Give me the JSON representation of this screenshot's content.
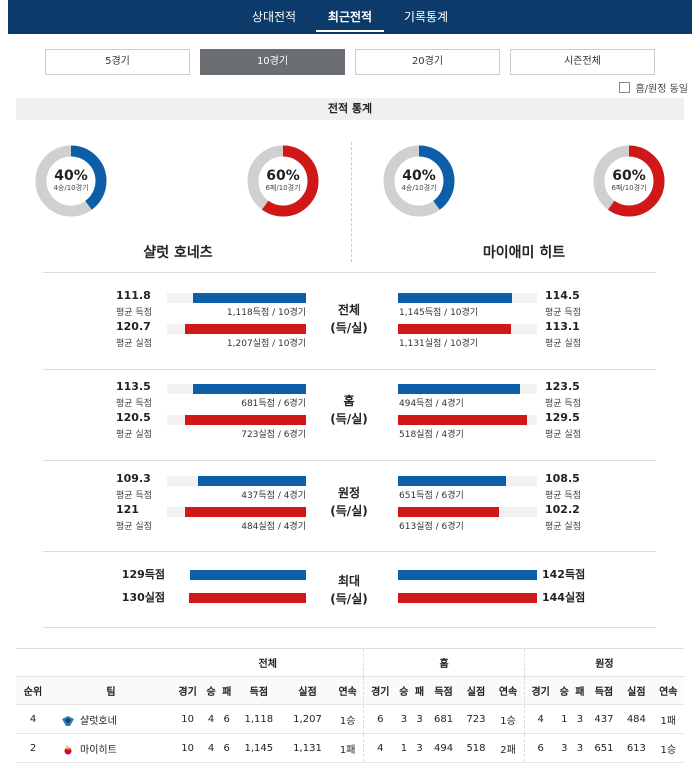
{
  "nav": {
    "tabs": [
      {
        "label": "상대전적"
      },
      {
        "label": "최근전적"
      },
      {
        "label": "기록통계"
      }
    ],
    "active_index": 1
  },
  "filters": {
    "buttons": [
      {
        "label": "5경기"
      },
      {
        "label": "10경기"
      },
      {
        "label": "20경기"
      },
      {
        "label": "시즌전체"
      }
    ],
    "active_index": 1
  },
  "home_away_toggle": {
    "label": "홈/원정 동일",
    "checked": false
  },
  "section_title": "전적 통계",
  "colors": {
    "blue": "#0d5ea8",
    "red": "#d01818",
    "grey": "#d0d0d0",
    "nav": "#0c3a6b"
  },
  "teams": [
    {
      "name": "샬럿 호네츠",
      "win": {
        "percent": 40,
        "pct_label": "40%",
        "sub": "4승/10경기"
      },
      "loss": {
        "percent": 60,
        "pct_label": "60%",
        "sub": "6패/10경기"
      }
    },
    {
      "name": "마이애미 히트",
      "win": {
        "percent": 40,
        "pct_label": "40%",
        "sub": "4승/10경기"
      },
      "loss": {
        "percent": 60,
        "pct_label": "60%",
        "sub": "6패/10경기"
      }
    }
  ],
  "stat_groups": [
    {
      "title": "전체",
      "subtitle": "(득/실)",
      "rows": [
        {
          "left_value": "111.8",
          "left_label": "평균 득점",
          "left_total": "1,118득점 / 10경기",
          "left_ratio": 0.81,
          "right_value": "114.5",
          "right_label": "평균 득점",
          "right_total": "1,145득점 / 10경기",
          "right_ratio": 0.82,
          "color": "blue"
        },
        {
          "left_value": "120.7",
          "left_label": "평균 실점",
          "left_total": "1,207실점 / 10경기",
          "left_ratio": 0.87,
          "right_value": "113.1",
          "right_label": "평균 실점",
          "right_total": "1,131실점 / 10경기",
          "right_ratio": 0.81,
          "color": "red"
        }
      ]
    },
    {
      "title": "홈",
      "subtitle": "(득/실)",
      "rows": [
        {
          "left_value": "113.5",
          "left_label": "평균 득점",
          "left_total": "681득점 / 6경기",
          "left_ratio": 0.81,
          "right_value": "123.5",
          "right_label": "평균 득점",
          "right_total": "494득점 / 4경기",
          "right_ratio": 0.88,
          "color": "blue"
        },
        {
          "left_value": "120.5",
          "left_label": "평균 실점",
          "left_total": "723실점 / 6경기",
          "left_ratio": 0.87,
          "right_value": "129.5",
          "right_label": "평균 실점",
          "right_total": "518실점 / 4경기",
          "right_ratio": 0.93,
          "color": "red"
        }
      ]
    },
    {
      "title": "원정",
      "subtitle": "(득/실)",
      "rows": [
        {
          "left_value": "109.3",
          "left_label": "평균 득점",
          "left_total": "437득점 / 4경기",
          "left_ratio": 0.78,
          "right_value": "108.5",
          "right_label": "평균 득점",
          "right_total": "651득점 / 6경기",
          "right_ratio": 0.78,
          "color": "blue"
        },
        {
          "left_value": "121",
          "left_label": "평균 실점",
          "left_total": "484실점 / 4경기",
          "left_ratio": 0.87,
          "right_value": "102.2",
          "right_label": "평균 실점",
          "right_total": "613실점 / 6경기",
          "right_ratio": 0.73,
          "color": "red"
        }
      ]
    }
  ],
  "max_group": {
    "title": "최대",
    "subtitle": "(득/실)",
    "rows": [
      {
        "left": "129득점",
        "right": "142득점",
        "left_ratio": 0.91,
        "right_ratio": 1.0,
        "color": "blue"
      },
      {
        "left": "130실점",
        "right": "144실점",
        "left_ratio": 0.92,
        "right_ratio": 1.0,
        "color": "red"
      }
    ]
  },
  "table": {
    "group_headers": [
      "전체",
      "홈",
      "원정"
    ],
    "rank_header": "순위",
    "team_header": "팀",
    "sub_headers": [
      "경기",
      "승",
      "패",
      "득점",
      "실점",
      "연속"
    ],
    "rows": [
      {
        "rank": "4",
        "team": "샬럿호네",
        "logo": "hornets-logo-icon",
        "total": [
          "10",
          "4",
          "6",
          "1,118",
          "1,207",
          "1승"
        ],
        "home": [
          "6",
          "3",
          "3",
          "681",
          "723",
          "1승"
        ],
        "away": [
          "4",
          "1",
          "3",
          "437",
          "484",
          "1패"
        ]
      },
      {
        "rank": "2",
        "team": "마이히트",
        "logo": "heat-logo-icon",
        "total": [
          "10",
          "4",
          "6",
          "1,145",
          "1,131",
          "1패"
        ],
        "home": [
          "4",
          "1",
          "3",
          "494",
          "518",
          "2패"
        ],
        "away": [
          "6",
          "3",
          "3",
          "651",
          "613",
          "1승"
        ]
      }
    ]
  }
}
